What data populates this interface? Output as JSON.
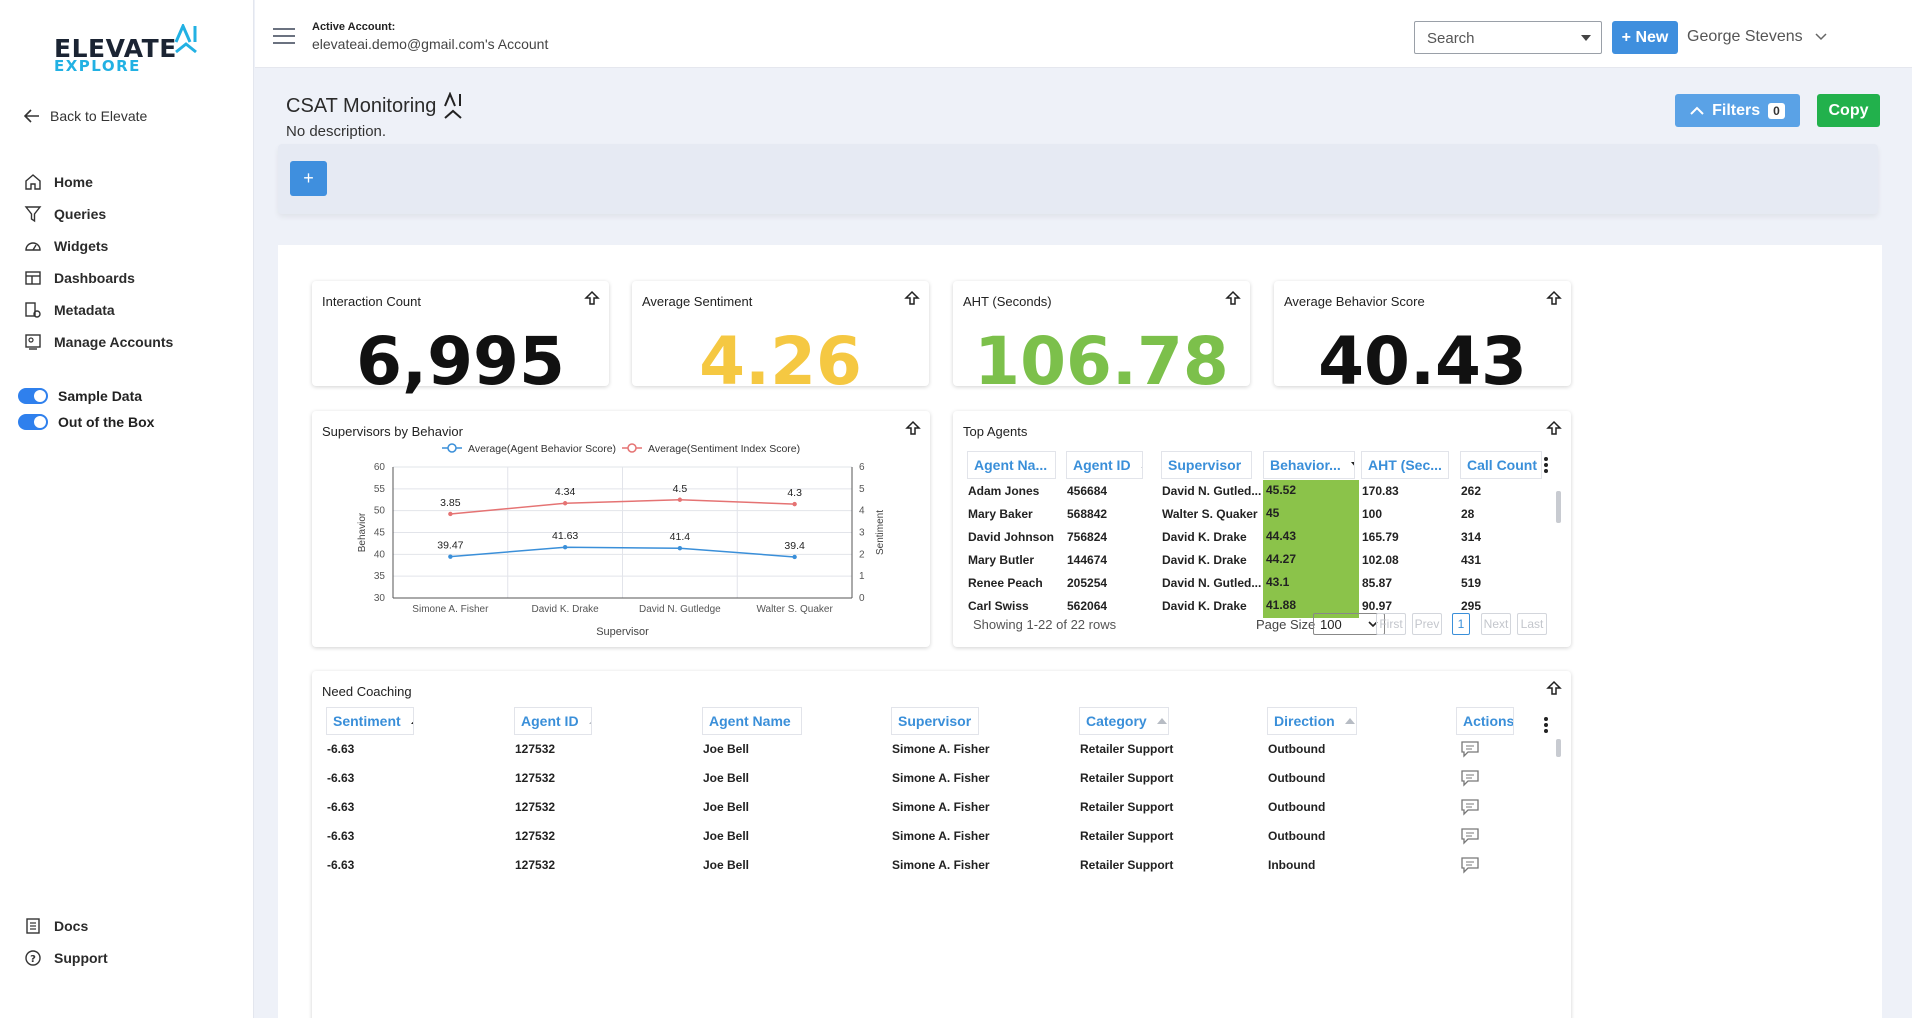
{
  "brand": {
    "name": "ELEVATE",
    "sub": "EXPLORE",
    "mark": "AI"
  },
  "sidebar": {
    "back_label": "Back to Elevate",
    "items": [
      {
        "label": "Home",
        "icon": "home-icon"
      },
      {
        "label": "Queries",
        "icon": "filter-icon"
      },
      {
        "label": "Widgets",
        "icon": "gauge-icon"
      },
      {
        "label": "Dashboards",
        "icon": "dashboard-icon"
      },
      {
        "label": "Metadata",
        "icon": "metadata-icon"
      },
      {
        "label": "Manage Accounts",
        "icon": "accounts-icon"
      }
    ],
    "toggles": [
      {
        "label": "Sample Data",
        "on": true
      },
      {
        "label": "Out of the Box",
        "on": true
      }
    ],
    "bottom": [
      {
        "label": "Docs",
        "icon": "docs-icon"
      },
      {
        "label": "Support",
        "icon": "help-icon"
      }
    ]
  },
  "topbar": {
    "account_label": "Active Account:",
    "account_value": "elevateai.demo@gmail.com's Account",
    "search_placeholder": "Search",
    "new_label": "+ New",
    "user_name": "George Stevens"
  },
  "page": {
    "title": "CSAT Monitoring",
    "description": "No description.",
    "filters_label": "Filters",
    "filters_count": "0",
    "copy_label": "Copy",
    "add_label": "+"
  },
  "kpis": [
    {
      "title": "Interaction Count",
      "value": "6,995",
      "color": "#111111"
    },
    {
      "title": "Average Sentiment",
      "value": "4.26",
      "color": "#f5c842"
    },
    {
      "title": "AHT (Seconds)",
      "value": "106.78",
      "color": "#7cc04b"
    },
    {
      "title": "Average Behavior Score",
      "value": "40.43",
      "color": "#111111"
    }
  ],
  "supervisor_chart": {
    "title": "Supervisors by Behavior"
  },
  "chart_data": {
    "type": "line",
    "categories": [
      "Simone A. Fisher",
      "David K. Drake",
      "David N. Gutledge",
      "Walter S. Quaker"
    ],
    "series": [
      {
        "name": "Average(Agent Behavior Score)",
        "values": [
          39.47,
          41.63,
          41.4,
          39.4
        ],
        "color": "#3a8fd9",
        "axis": "left"
      },
      {
        "name": "Average(Sentiment Index Score)",
        "values": [
          3.85,
          4.34,
          4.5,
          4.3
        ],
        "color": "#e57373",
        "axis": "right"
      }
    ],
    "xlabel": "Supervisor",
    "ylabel": "Behavior",
    "y2label": "Sentiment",
    "ylim": [
      30,
      60
    ],
    "y2lim": [
      0,
      6
    ],
    "yticks": [
      "60",
      "55",
      "50",
      "45",
      "40",
      "35",
      "30"
    ],
    "y2ticks": [
      "6",
      "5",
      "4",
      "3",
      "2",
      "1",
      "0"
    ],
    "grid": true,
    "legend": "top"
  },
  "top_agents": {
    "title": "Top Agents",
    "columns": [
      "Agent Na...",
      "Agent ID",
      "Supervisor",
      "Behavior...",
      "AHT (Sec...",
      "Call Count"
    ],
    "rows": [
      [
        "Adam Jones",
        "456684",
        "David N. Gutled...",
        "45.52",
        "170.83",
        "262"
      ],
      [
        "Mary Baker",
        "568842",
        "Walter S. Quaker",
        "45",
        "100",
        "28"
      ],
      [
        "David Johnson",
        "756824",
        "David K. Drake",
        "44.43",
        "165.79",
        "314"
      ],
      [
        "Mary Butler",
        "144674",
        "David K. Drake",
        "44.27",
        "102.08",
        "431"
      ],
      [
        "Renee Peach",
        "205254",
        "David N. Gutled...",
        "43.1",
        "85.87",
        "519"
      ],
      [
        "Carl Swiss",
        "562064",
        "David K. Drake",
        "41.88",
        "90.97",
        "295"
      ]
    ],
    "showing": "Showing 1-22 of 22 rows",
    "page_size_label": "Page Size",
    "page_size": "100",
    "pager": [
      "First",
      "Prev",
      "1",
      "Next",
      "Last"
    ]
  },
  "need_coaching": {
    "title": "Need Coaching",
    "columns": [
      "Sentiment",
      "Agent ID",
      "Agent Name",
      "Supervisor",
      "Category",
      "Direction",
      "Actions"
    ],
    "rows": [
      [
        "-6.63",
        "127532",
        "Joe Bell",
        "Simone A. Fisher",
        "Retailer Support",
        "Outbound"
      ],
      [
        "-6.63",
        "127532",
        "Joe Bell",
        "Simone A. Fisher",
        "Retailer Support",
        "Outbound"
      ],
      [
        "-6.63",
        "127532",
        "Joe Bell",
        "Simone A. Fisher",
        "Retailer Support",
        "Outbound"
      ],
      [
        "-6.63",
        "127532",
        "Joe Bell",
        "Simone A. Fisher",
        "Retailer Support",
        "Outbound"
      ],
      [
        "-6.63",
        "127532",
        "Joe Bell",
        "Simone A. Fisher",
        "Retailer Support",
        "Inbound"
      ]
    ]
  }
}
